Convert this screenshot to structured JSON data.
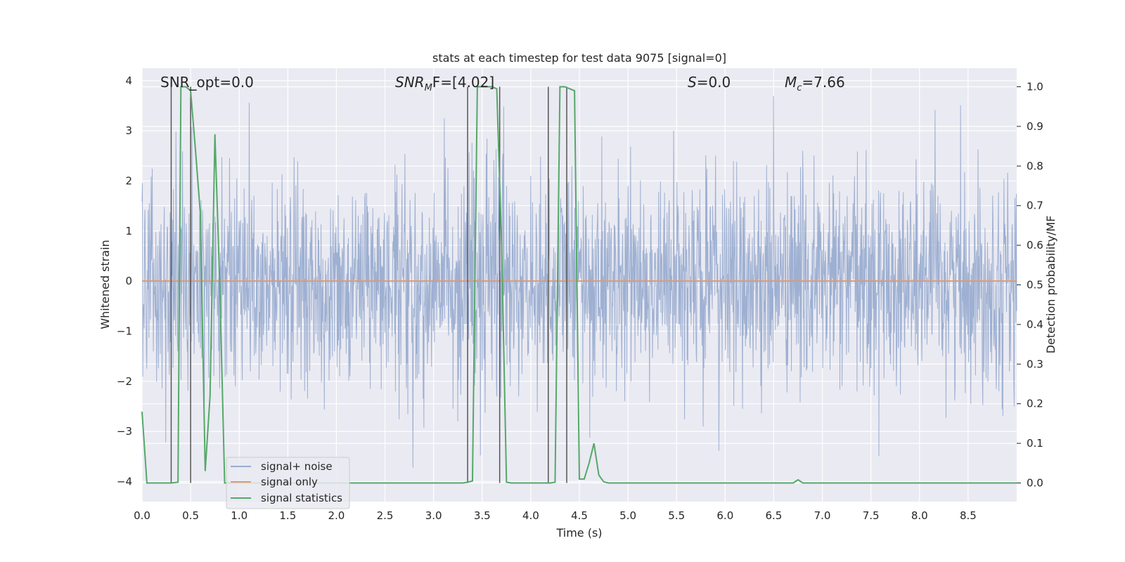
{
  "chart_data": {
    "type": "line",
    "title": "stats at each timestep for test data 9075 [signal=0]",
    "xlabel": "Time (s)",
    "ylabel": "Whitened strain",
    "y2label": "Detection probability/MF",
    "xlim": [
      0,
      9.0
    ],
    "ylim": [
      -4.4,
      4.25
    ],
    "y2lim": [
      -0.047,
      1.047
    ],
    "xticks": [
      "0.0",
      "0.5",
      "1.0",
      "1.5",
      "2.0",
      "2.5",
      "3.0",
      "3.5",
      "4.0",
      "4.5",
      "5.0",
      "5.5",
      "6.0",
      "6.5",
      "7.0",
      "7.5",
      "8.0",
      "8.5"
    ],
    "yticks": [
      "4",
      "3",
      "2",
      "1",
      "0",
      "−1",
      "−2",
      "−3",
      "−4"
    ],
    "y2ticks": [
      "1.0",
      "0.9",
      "0.8",
      "0.7",
      "0.6",
      "0.5",
      "0.4",
      "0.3",
      "0.2",
      "0.1",
      "0.0"
    ],
    "grid": true,
    "legend_position": "lower-left",
    "annotations": {
      "snr_opt": "SNR_opt=0.0",
      "snr_mf_base": "SNR",
      "snr_mf_sub": "M",
      "snr_mf_rest": "F=[4.02]",
      "s_base": "S",
      "s_rest": "=0.0",
      "mc_base": "M",
      "mc_sub": "c",
      "mc_rest": "=7.66"
    },
    "series": [
      {
        "name": "signal+ noise",
        "color": "#9aadd0",
        "description_values": "gaussian noise envelope",
        "amplitude_typical": 1.8,
        "amplitude_max": 4.0
      },
      {
        "name": "signal only",
        "color": "#dd9a74",
        "values_constant": 0.0
      },
      {
        "name": "signal statistics",
        "color": "#55a868",
        "x": [
          0.0,
          0.05,
          0.1,
          0.2,
          0.3,
          0.37,
          0.4,
          0.45,
          0.5,
          0.55,
          0.6,
          0.65,
          0.7,
          0.75,
          0.8,
          0.85,
          0.9,
          1.0,
          1.5,
          2.0,
          2.5,
          3.0,
          3.3,
          3.35,
          3.4,
          3.45,
          3.5,
          3.55,
          3.6,
          3.65,
          3.7,
          3.75,
          3.8,
          4.0,
          4.1,
          4.2,
          4.25,
          4.3,
          4.35,
          4.4,
          4.45,
          4.5,
          4.55,
          4.6,
          4.65,
          4.7,
          4.75,
          4.8,
          4.85,
          5.0,
          6.0,
          6.5,
          6.7,
          6.75,
          6.8,
          7.0,
          8.0,
          9.0
        ],
        "y": [
          0.18,
          0.0,
          0.0,
          0.0,
          0.0,
          0.002,
          1.0,
          1.0,
          0.99,
          0.84,
          0.68,
          0.03,
          0.22,
          0.88,
          0.5,
          0.0,
          0.0,
          0.0,
          0.0,
          0.0,
          0.0,
          0.0,
          0.0,
          0.002,
          0.005,
          1.0,
          1.0,
          1.0,
          1.0,
          0.995,
          0.6,
          0.002,
          0.0,
          0.0,
          0.0,
          0.0,
          0.002,
          1.0,
          1.0,
          0.995,
          0.99,
          0.01,
          0.01,
          0.05,
          0.1,
          0.02,
          0.003,
          0.0,
          0.0,
          0.0,
          0.0,
          0.0,
          0.0,
          0.008,
          0.0,
          0.0,
          0.0,
          0.0
        ]
      }
    ],
    "vlines_x": [
      0.3,
      0.5,
      3.35,
      3.68,
      4.18,
      4.37
    ]
  }
}
